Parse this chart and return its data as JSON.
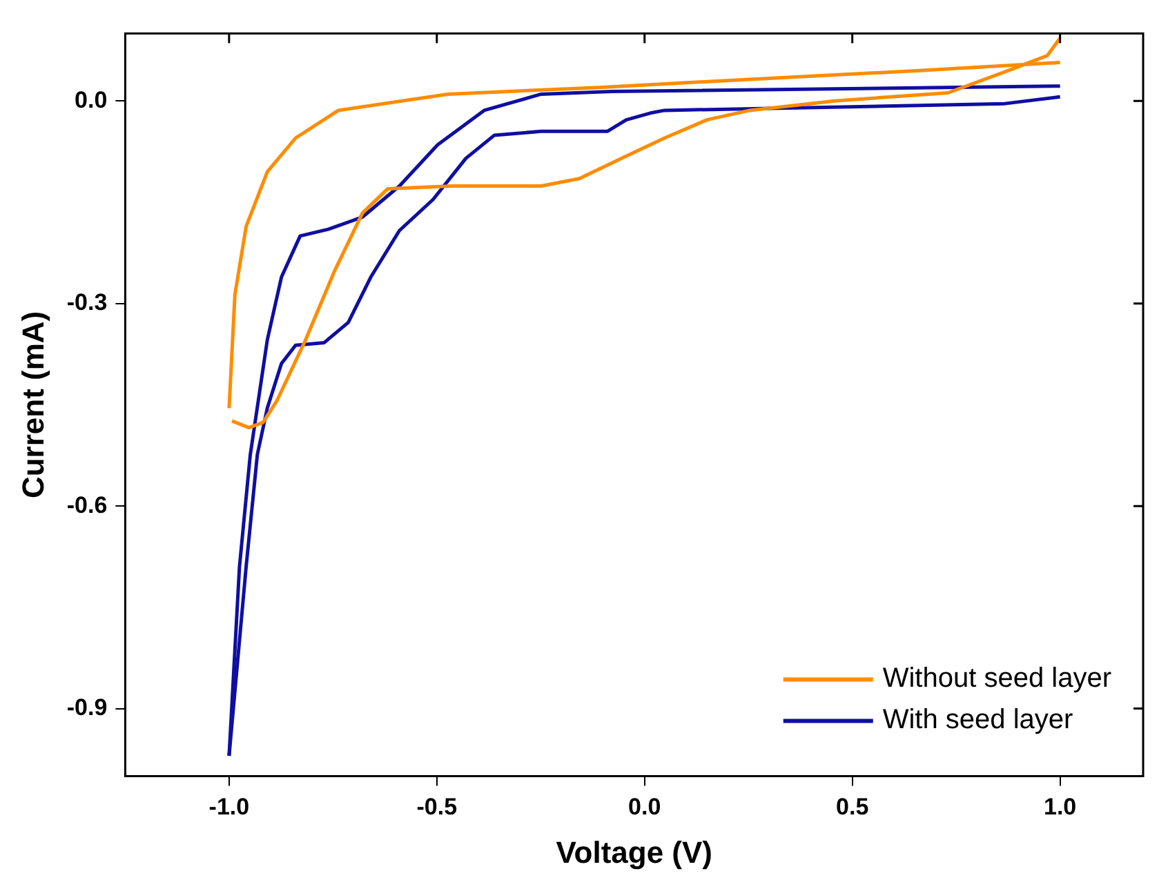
{
  "chart_data": {
    "type": "line",
    "xlabel": "Voltage (V)",
    "ylabel": "Current (mA)",
    "xlim": [
      -1.25,
      1.2
    ],
    "ylim": [
      -1.0,
      0.1
    ],
    "xticks": [
      {
        "value": -1,
        "label": "-1.0"
      },
      {
        "value": -0.5,
        "label": "-0.5"
      },
      {
        "value": 0,
        "label": "0.0"
      },
      {
        "value": 0.5,
        "label": "0.5"
      },
      {
        "value": 1,
        "label": "1.0"
      }
    ],
    "yticks": [
      {
        "value": 0,
        "label": "0.0"
      },
      {
        "value": -0.3,
        "label": "-0.3"
      },
      {
        "value": -0.6,
        "label": "-0.6"
      },
      {
        "value": -0.9,
        "label": "-0.9"
      }
    ],
    "grid": false,
    "legend": "bottom right",
    "marker": "none",
    "line_style": "solid",
    "series": [
      {
        "name": "Without seed layer",
        "color": "#ff8c00",
        "x": [
          -1.0,
          -0.986,
          -0.959,
          -0.908,
          -0.84,
          -0.737,
          -0.474,
          -0.11,
          0.253,
          0.662,
          1.0
        ],
        "values": [
          -0.455,
          -0.287,
          -0.186,
          -0.105,
          -0.055,
          -0.014,
          0.01,
          0.02,
          0.032,
          0.045,
          0.057
        ]
      },
      {
        "color": "#ff8c00",
        "x": [
          1.0,
          0.969,
          0.867,
          0.73,
          0.457,
          0.253,
          0.15,
          0.048,
          -0.055,
          -0.157,
          -0.249,
          -0.464,
          -0.618,
          -0.679,
          -0.747,
          -0.816,
          -0.884,
          -0.918,
          -0.952,
          -0.993
        ],
        "values": [
          0.093,
          0.067,
          0.043,
          0.012,
          0.0,
          -0.014,
          -0.028,
          -0.055,
          -0.085,
          -0.115,
          -0.126,
          -0.126,
          -0.13,
          -0.166,
          -0.253,
          -0.354,
          -0.443,
          -0.476,
          -0.484,
          -0.474
        ]
      },
      {
        "name": "With seed layer",
        "color": "#0f0fa0",
        "x": [
          -1.0,
          -0.975,
          -0.949,
          -0.908,
          -0.874,
          -0.829,
          -0.761,
          -0.679,
          -0.59,
          -0.498,
          -0.386,
          -0.249,
          -0.078,
          1.0
        ],
        "values": [
          -0.97,
          -0.69,
          -0.524,
          -0.354,
          -0.261,
          -0.2,
          -0.19,
          -0.172,
          -0.126,
          -0.065,
          -0.014,
          0.01,
          0.014,
          0.022
        ]
      },
      {
        "color": "#0f0fa0",
        "x": [
          1.0,
          0.867,
          0.389,
          0.048,
          0.014,
          -0.044,
          -0.089,
          -0.249,
          -0.362,
          -0.43,
          -0.509,
          -0.59,
          -0.659,
          -0.713,
          -0.771,
          -0.84,
          -0.874,
          -0.908,
          -0.932,
          -0.959,
          -1.0
        ],
        "values": [
          0.006,
          -0.004,
          -0.01,
          -0.014,
          -0.018,
          -0.028,
          -0.045,
          -0.045,
          -0.051,
          -0.085,
          -0.146,
          -0.192,
          -0.261,
          -0.328,
          -0.358,
          -0.362,
          -0.389,
          -0.455,
          -0.524,
          -0.69,
          -0.97
        ]
      }
    ]
  }
}
